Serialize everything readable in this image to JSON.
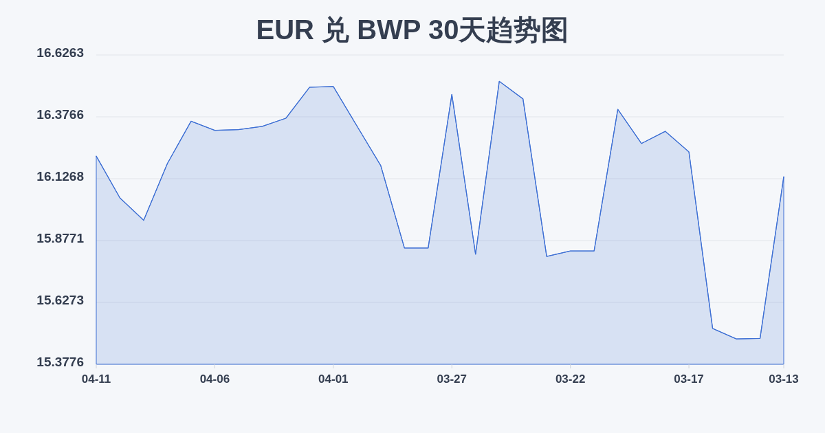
{
  "chart_data": {
    "type": "area",
    "title": "EUR 兑 BWP 30天趋势图",
    "categories": [
      "04-11",
      null,
      null,
      null,
      null,
      "04-06",
      null,
      null,
      null,
      null,
      "04-01",
      null,
      null,
      null,
      null,
      "03-27",
      null,
      null,
      null,
      null,
      "03-22",
      null,
      null,
      null,
      null,
      "03-17",
      null,
      null,
      null,
      "03-13"
    ],
    "series": [
      {
        "color": "#3d6fd4",
        "values": [
          16.218,
          16.049,
          15.959,
          16.188,
          16.359,
          16.322,
          16.325,
          16.338,
          16.371,
          16.496,
          16.499,
          16.339,
          16.18,
          15.847,
          15.847,
          16.467,
          15.822,
          16.52,
          16.449,
          15.813,
          15.835,
          15.835,
          16.407,
          16.269,
          16.318,
          16.235,
          15.522,
          15.48,
          15.482,
          16.135
        ]
      }
    ],
    "ylim": [
      15.3776,
      16.6263
    ],
    "yticks": [
      15.3776,
      15.6273,
      15.8771,
      16.1268,
      16.3766,
      16.6263
    ],
    "grid": "y"
  }
}
